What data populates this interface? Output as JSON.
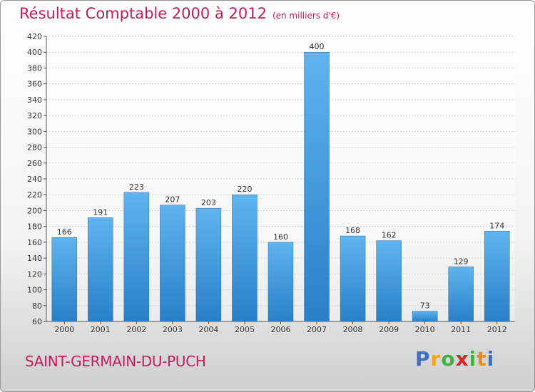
{
  "header": {
    "title": "Résultat Comptable 2000 à 2012",
    "unit": "(en milliers d'€)"
  },
  "footer": {
    "town": "SAINT-GERMAIN-DU-PUCH"
  },
  "logo": {
    "text": "Proxiti"
  },
  "colors": {
    "bar": "#3f98dc",
    "title": "#c51a5b",
    "axis": "#555555"
  },
  "chart_data": {
    "type": "bar",
    "title": "Résultat Comptable 2000 à 2012",
    "categories": [
      "2000",
      "2001",
      "2002",
      "2003",
      "2004",
      "2005",
      "2006",
      "2007",
      "2008",
      "2009",
      "2010",
      "2011",
      "2012"
    ],
    "values": [
      166,
      191,
      223,
      207,
      203,
      220,
      160,
      400,
      168,
      162,
      73,
      129,
      174
    ],
    "ylim": [
      60,
      420
    ],
    "yticks": [
      60,
      80,
      100,
      120,
      140,
      160,
      180,
      200,
      220,
      240,
      260,
      280,
      300,
      320,
      340,
      360,
      380,
      400,
      420
    ],
    "grid": true,
    "legend": "none"
  }
}
